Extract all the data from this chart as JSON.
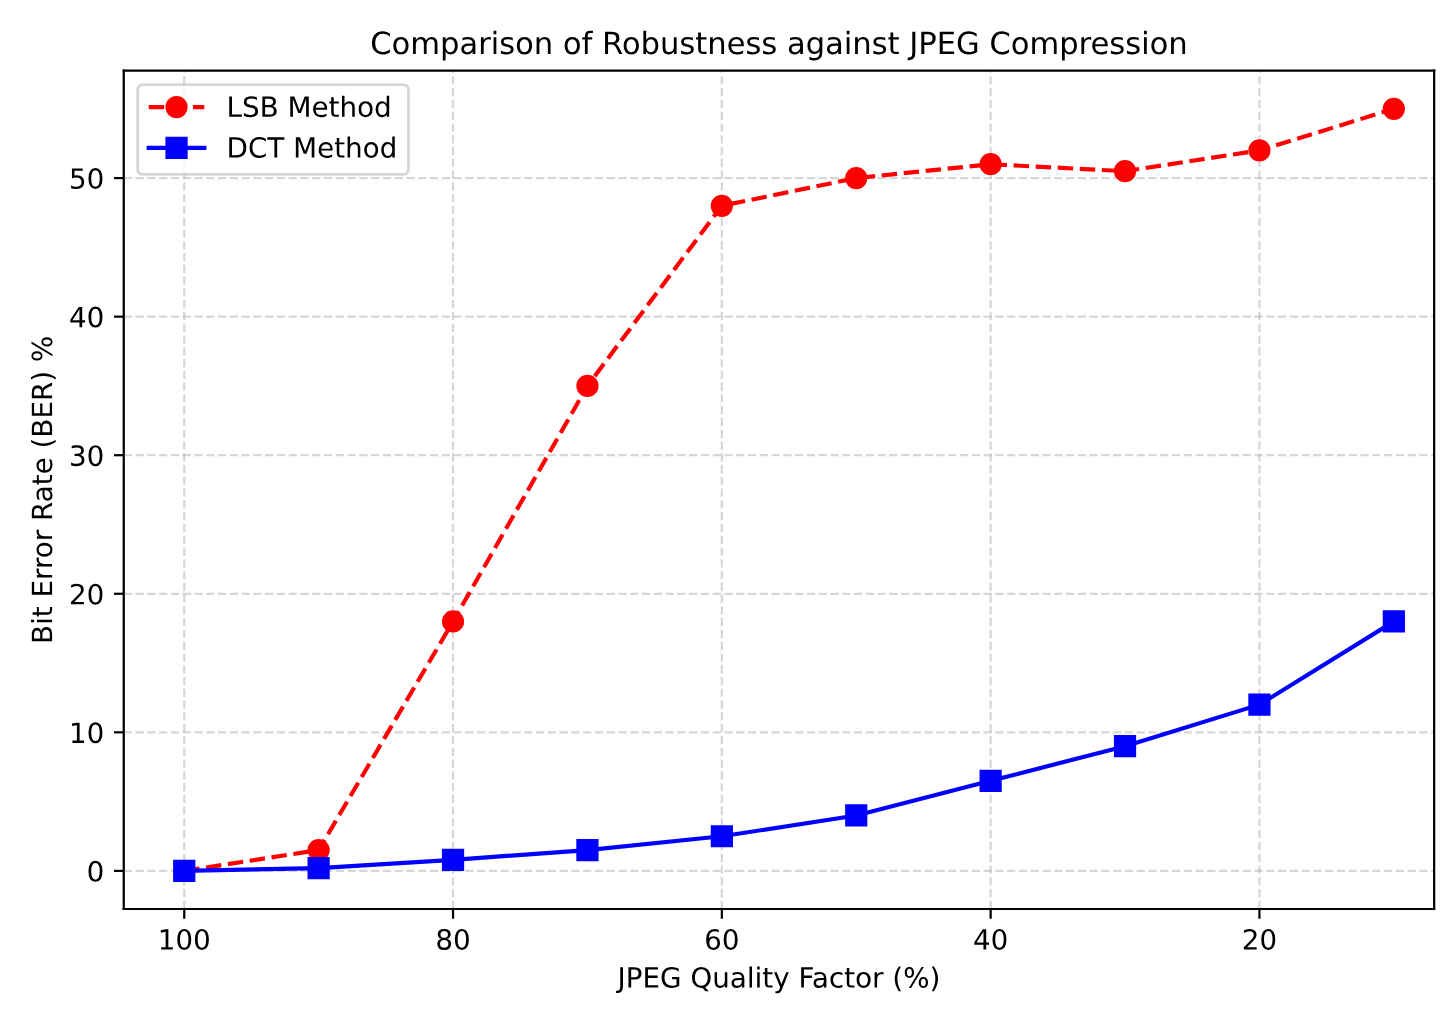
{
  "chart_data": {
    "type": "line",
    "title": "Comparison of Robustness against JPEG Compression",
    "xlabel": "JPEG Quality Factor (%)",
    "ylabel": "Bit Error Rate (BER) %",
    "x": [
      100,
      90,
      80,
      70,
      60,
      50,
      40,
      30,
      20,
      10
    ],
    "series": [
      {
        "name": "LSB Method",
        "color": "#ff0000",
        "values": [
          0,
          1.5,
          18,
          35,
          48,
          50,
          51,
          50.5,
          52,
          55
        ],
        "marker": "circle",
        "line_style": "dashed"
      },
      {
        "name": "DCT Method",
        "color": "#0000ff",
        "values": [
          0,
          0.2,
          0.8,
          1.5,
          2.5,
          4,
          6.5,
          9,
          12,
          18
        ],
        "marker": "square",
        "line_style": "solid"
      }
    ],
    "xlim": [
      104.5,
      7
    ],
    "xticks": [
      100,
      80,
      60,
      40,
      20
    ],
    "ylim": [
      -2.75,
      57.75
    ],
    "yticks": [
      0,
      10,
      20,
      30,
      40,
      50
    ],
    "grid": true,
    "legend": "top left"
  }
}
